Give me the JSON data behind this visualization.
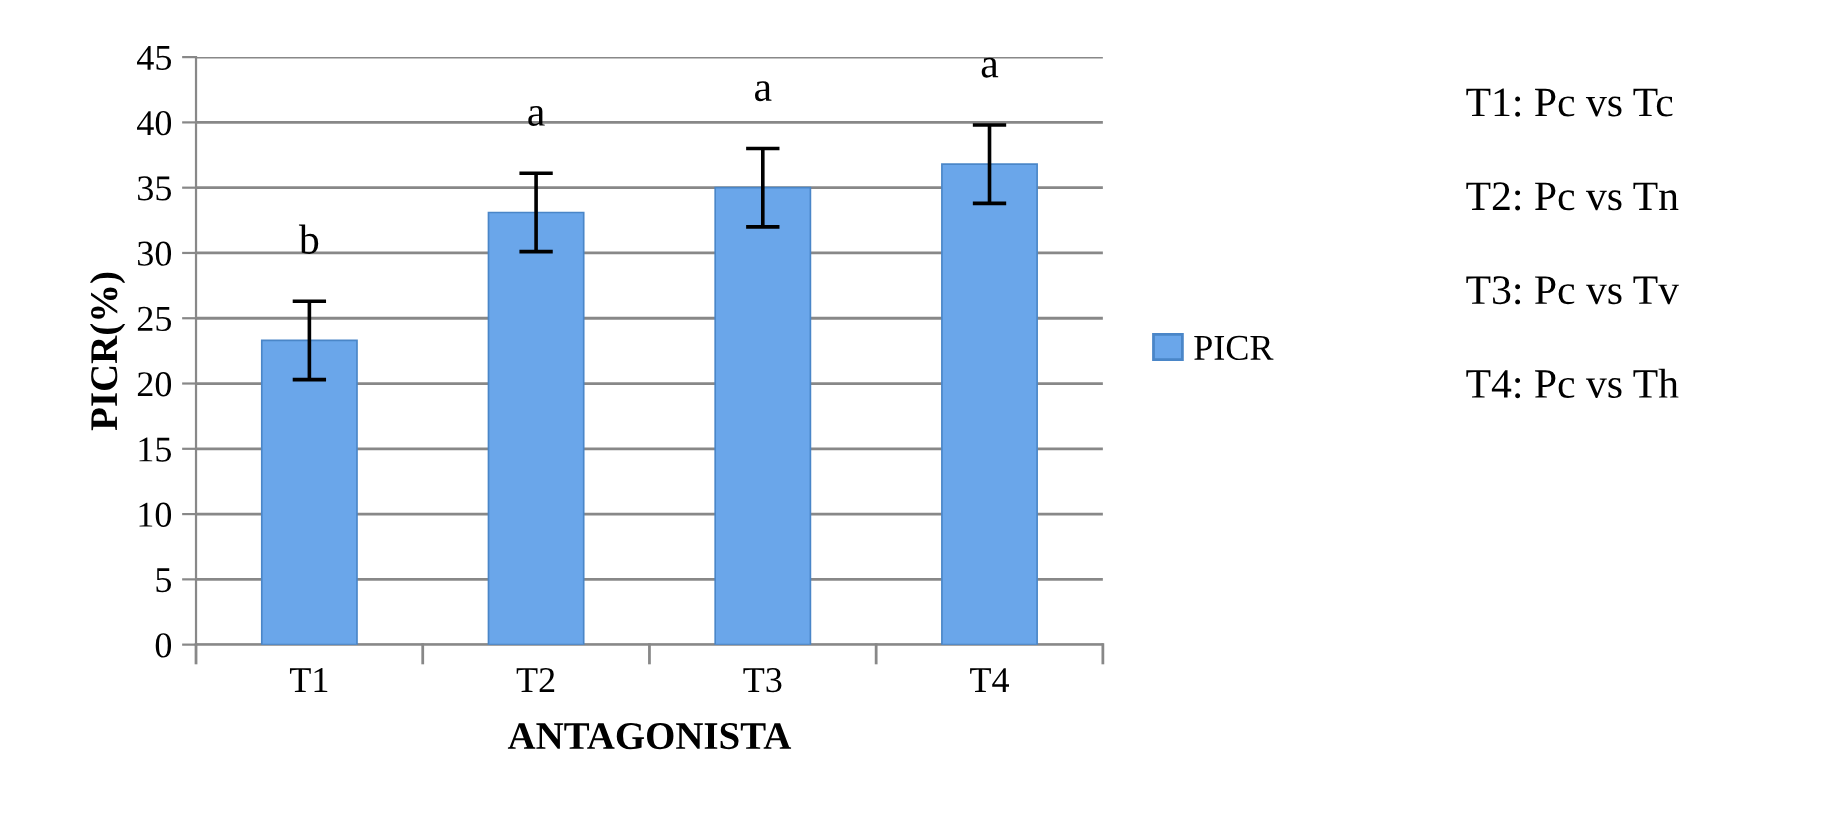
{
  "chart_data": {
    "type": "bar",
    "xlabel": "ANTAGONISTA",
    "ylabel": "PICR(%)",
    "categories": [
      "T1",
      "T2",
      "T3",
      "T4"
    ],
    "series": [
      {
        "name": "PICR",
        "color": "#6aa6ea",
        "values": [
          23.3,
          33.1,
          35.0,
          36.8
        ],
        "errors": [
          3,
          3,
          3,
          3
        ],
        "value_labels": [
          "b",
          "a",
          "a",
          "a"
        ]
      }
    ],
    "ylim": [
      0,
      45
    ],
    "yticks": [
      0,
      5,
      10,
      15,
      20,
      25,
      30,
      35,
      40,
      45
    ],
    "grid": "y",
    "legend": "right",
    "annotations": [
      "T1: Pc vs Tc",
      "T2: Pc vs Tn",
      "T3: Pc vs Tv",
      "T4: Pc vs Th"
    ]
  }
}
